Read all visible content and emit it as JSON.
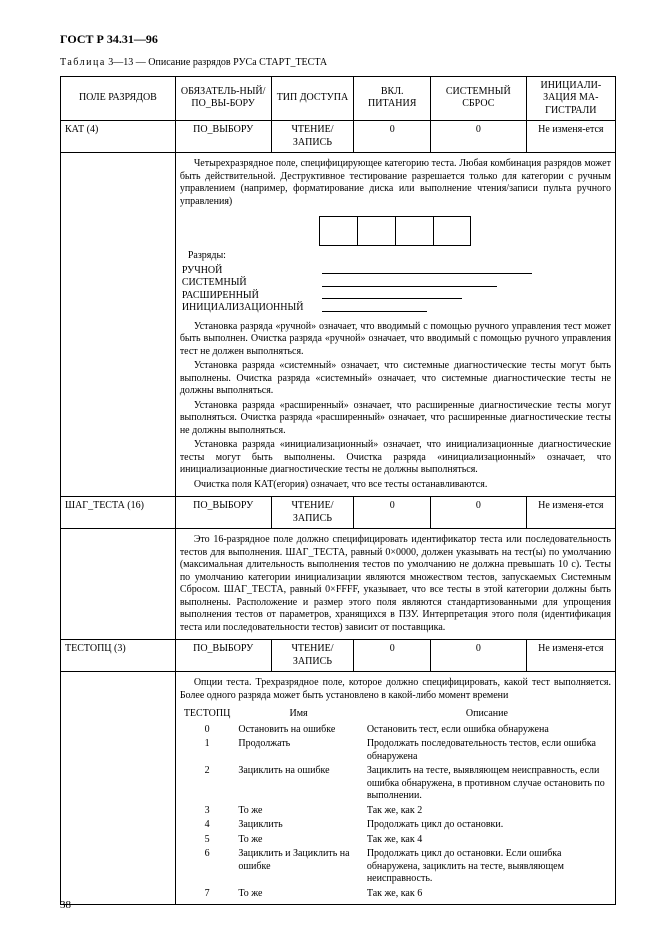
{
  "doc_header": "ГОСТ Р 34.31—96",
  "table_caption": "Таблица 3—13 — Описание разрядов РУСа СТАРТ_ТЕСТА",
  "columns": {
    "c1": "ПОЛЕ РАЗРЯДОВ",
    "c2": "ОБЯЗАТЕЛЬ-НЫЙ/ПО_ВЫ-БОРУ",
    "c3": "ТИП ДОСТУПА",
    "c4": "ВКЛ. ПИТАНИЯ",
    "c5": "СИСТЕМНЫЙ СБРОС",
    "c6": "ИНИЦИАЛИ-ЗАЦИЯ МА-ГИСТРАЛИ"
  },
  "row_kat": {
    "name": "КАТ (4)",
    "mand": "ПО_ВЫБОРУ",
    "access": "ЧТЕНИЕ/ ЗАПИСЬ",
    "pwr": "0",
    "sys": "0",
    "bus": "Не изменя-ется"
  },
  "kat_desc_top": "Четырехразрядное поле, специфицирующее категорию теста. Любая комбинация разрядов может быть действительной. Деструктивное тестирование разрешается только для категории с ручным управлением (например, форматирование диска или выполнение чтения/записи пульта ручного управления)",
  "bits": {
    "title": "Разряды:",
    "b0": "РУЧНОЙ",
    "b1": "СИСТЕМНЫЙ",
    "b2": "РАСШИРЕННЫЙ",
    "b3": "ИНИЦИАЛИЗАЦИОННЫЙ"
  },
  "kat_paras": [
    "Установка разряда «ручной» означает, что вводимый с помощью ручного управления тест может быть выполнен. Очистка разряда «ручной» означает, что вводимый с помощью ручного управления тест не должен выполняться.",
    "Установка разряда «системный» означает, что системные диагностические тесты могут быть выполнены. Очистка разряда «системный» означает, что системные диагностические тесты не должны выполняться.",
    "Установка разряда «расширенный» означает, что расширенные диагностические тесты могут выполняться. Очистка разряда «расширенный» означает, что расширенные диагностические тесты не должны выполняться.",
    "Установка разряда «инициализационный» означает, что инициализационные диагностические тесты могут быть выполнены. Очистка разряда «инициализационный» означает, что инициализационные диагностические тесты не должны выполняться.",
    "Очистка поля КАТ(егория) означает, что все тесты останавливаются."
  ],
  "row_shag": {
    "name": "ШАГ_ТЕСТА (16)",
    "mand": "ПО_ВЫБОРУ",
    "access": "ЧТЕНИЕ/ ЗАПИСЬ",
    "pwr": "0",
    "sys": "0",
    "bus": "Не изменя-ется"
  },
  "shag_desc": "Это 16-разрядное поле должно специфицировать идентификатор теста или последовательность тестов для выполнения. ШАГ_ТЕСТА, равный 0×0000, должен указывать на тест(ы) по умолчанию (максимальная длительность выполнения тестов по умолчанию не должна превышать 10 с). Тесты по умолчанию категории инициализации являются множеством тестов, запускаемых Системным Сбросом. ШАГ_ТЕСТА, равный 0×FFFF, указывает, что все тесты в этой категории должны быть выполнены. Расположение и размер этого поля являются стандартизованными для упрощения выполнения тестов от параметров, хранящихся в ПЗУ. Интерпретация этого поля (идентификация теста или последовательности тестов) зависит от поставщика.",
  "row_testopc": {
    "name": "ТЕСТОПЦ (3)",
    "mand": "ПО_ВЫБОРУ",
    "access": "ЧТЕНИЕ/ ЗАПИСЬ",
    "pwr": "0",
    "sys": "0",
    "bus": "Не изменя-ется"
  },
  "testopc_intro": "Опции теста. Трехразрядное поле, которое должно специфицировать, какой тест выполняется. Более одного разряда может быть установлено в какой-либо момент времени",
  "testopc_headers": {
    "h1": "ТЕСТОПЦ",
    "h2": "Имя",
    "h3": "Описание"
  },
  "testopc_rows": [
    {
      "v": "0",
      "name": "Остановить на ошибке",
      "desc": "Остановить тест, если ошибка обнаружена"
    },
    {
      "v": "1",
      "name": "Продолжать",
      "desc": "Продолжать последовательность тестов, если ошибка обнаружена"
    },
    {
      "v": "2",
      "name": "Зациклить на ошибке",
      "desc": "Зациклить на тесте, выявляющем неисправность, если ошибка обнаружена, в противном случае остановить по выполнении."
    },
    {
      "v": "3",
      "name": "То же",
      "desc": "Так же, как 2"
    },
    {
      "v": "4",
      "name": "Зациклить",
      "desc": "Продолжать цикл до остановки."
    },
    {
      "v": "5",
      "name": "То же",
      "desc": "Так же, как 4"
    },
    {
      "v": "6",
      "name": "Зациклить и Зациклить на ошибке",
      "desc": "Продолжать цикл до остановки. Если ошибка обнаружена, зациклить на тесте, выявляющем неисправность."
    },
    {
      "v": "7",
      "name": "То же",
      "desc": "Так же, как 6"
    }
  ],
  "page_number": "38"
}
